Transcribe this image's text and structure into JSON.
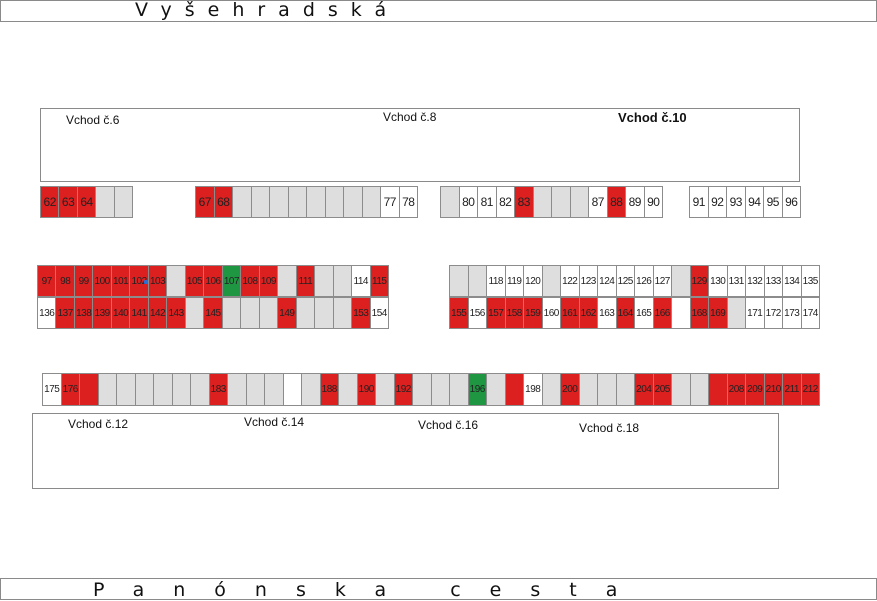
{
  "streets": {
    "top": "Vyšehradská",
    "bottom": "Panónska cesta"
  },
  "entrances_top": [
    "Vchod č.6",
    "Vchod č.8",
    "Vchod č.10"
  ],
  "entrances_bottom": [
    "Vchod č.12",
    "Vchod č.14",
    "Vchod č.16",
    "Vchod č.18"
  ],
  "colors": {
    "occupied": "#dc2020",
    "highlight": "#1f9642",
    "unnumbered": "#dedede",
    "available": "#ffffff"
  },
  "rows": [
    {
      "id": "row-a",
      "segments": [
        {
          "cells": [
            [
              "62",
              "red"
            ],
            [
              "63",
              "red"
            ],
            [
              "64",
              "red"
            ],
            [
              "",
              "grey"
            ],
            [
              "",
              "grey"
            ]
          ]
        },
        {
          "cells": [
            [
              "67",
              "red"
            ],
            [
              "68",
              "red"
            ],
            [
              "",
              "grey"
            ],
            [
              "",
              "grey"
            ],
            [
              "",
              "grey"
            ],
            [
              "",
              "grey"
            ],
            [
              "",
              "grey"
            ],
            [
              "",
              "grey"
            ],
            [
              "",
              "grey"
            ],
            [
              "",
              "grey"
            ],
            [
              "77",
              "white"
            ],
            [
              "78",
              "white"
            ]
          ]
        },
        {
          "cells": [
            [
              "",
              "grey"
            ],
            [
              "80",
              "white"
            ],
            [
              "81",
              "white"
            ],
            [
              "82",
              "white"
            ],
            [
              "83",
              "red"
            ],
            [
              "",
              "grey"
            ],
            [
              "",
              "grey"
            ],
            [
              "",
              "grey"
            ],
            [
              "87",
              "white"
            ],
            [
              "88",
              "red"
            ],
            [
              "89",
              "white"
            ],
            [
              "90",
              "white"
            ]
          ]
        },
        {
          "cells": [
            [
              "91",
              "white"
            ],
            [
              "92",
              "white"
            ],
            [
              "93",
              "white"
            ],
            [
              "94",
              "white"
            ],
            [
              "95",
              "white"
            ],
            [
              "96",
              "white"
            ]
          ]
        }
      ]
    },
    {
      "id": "row-b1",
      "segments": [
        {
          "cells": [
            [
              "97",
              "red"
            ],
            [
              "98",
              "red"
            ],
            [
              "99",
              "red"
            ],
            [
              "100",
              "red"
            ],
            [
              "101",
              "red"
            ],
            [
              "102",
              "red"
            ],
            [
              "103",
              "red"
            ],
            [
              "",
              "grey"
            ],
            [
              "105",
              "red"
            ],
            [
              "106",
              "red"
            ],
            [
              "107",
              "green"
            ],
            [
              "108",
              "red"
            ],
            [
              "109",
              "red"
            ],
            [
              "",
              "grey"
            ],
            [
              "111",
              "red"
            ],
            [
              "",
              "grey"
            ],
            [
              "",
              "grey"
            ],
            [
              "114",
              "white"
            ],
            [
              "115",
              "red"
            ]
          ]
        },
        {
          "cells": [
            [
              "",
              "grey"
            ],
            [
              "",
              "grey"
            ],
            [
              "118",
              "white"
            ],
            [
              "119",
              "white"
            ],
            [
              "120",
              "white"
            ],
            [
              "",
              "grey"
            ],
            [
              "122",
              "white"
            ],
            [
              "123",
              "white"
            ],
            [
              "124",
              "white"
            ],
            [
              "125",
              "white"
            ],
            [
              "126",
              "white"
            ],
            [
              "127",
              "white"
            ],
            [
              "",
              "grey"
            ],
            [
              "129",
              "red"
            ],
            [
              "130",
              "white"
            ],
            [
              "131",
              "white"
            ],
            [
              "132",
              "white"
            ],
            [
              "133",
              "white"
            ],
            [
              "134",
              "white"
            ],
            [
              "135",
              "white"
            ]
          ]
        }
      ]
    },
    {
      "id": "row-b2",
      "segments": [
        {
          "cells": [
            [
              "136",
              "white"
            ],
            [
              "137",
              "red"
            ],
            [
              "138",
              "red"
            ],
            [
              "139",
              "red"
            ],
            [
              "140",
              "red"
            ],
            [
              "141",
              "red"
            ],
            [
              "142",
              "red"
            ],
            [
              "143",
              "red"
            ],
            [
              "",
              "grey"
            ],
            [
              "145",
              "red"
            ],
            [
              "",
              "grey"
            ],
            [
              "",
              "grey"
            ],
            [
              "",
              "grey"
            ],
            [
              "149",
              "red"
            ],
            [
              "",
              "grey"
            ],
            [
              "",
              "grey"
            ],
            [
              "",
              "grey"
            ],
            [
              "153",
              "red"
            ],
            [
              "154",
              "white"
            ]
          ]
        },
        {
          "cells": [
            [
              "155",
              "red"
            ],
            [
              "156",
              "white"
            ],
            [
              "157",
              "red"
            ],
            [
              "158",
              "red"
            ],
            [
              "159",
              "red"
            ],
            [
              "160",
              "white"
            ],
            [
              "161",
              "red"
            ],
            [
              "162",
              "red"
            ],
            [
              "163",
              "white"
            ],
            [
              "164",
              "red"
            ],
            [
              "165",
              "white"
            ],
            [
              "166",
              "red"
            ],
            [
              "",
              "white"
            ],
            [
              "168",
              "red"
            ],
            [
              "169",
              "red"
            ],
            [
              "",
              "grey"
            ],
            [
              "171",
              "white"
            ],
            [
              "172",
              "white"
            ],
            [
              "173",
              "white"
            ],
            [
              "174",
              "white"
            ]
          ]
        }
      ]
    },
    {
      "id": "row-c",
      "segments": [
        {
          "cells": [
            [
              "175",
              "white"
            ],
            [
              "176",
              "red"
            ],
            [
              "",
              "red"
            ],
            [
              "",
              "grey"
            ],
            [
              "",
              "grey"
            ],
            [
              "",
              "grey"
            ],
            [
              "",
              "grey"
            ],
            [
              "",
              "grey"
            ],
            [
              "",
              "grey"
            ],
            [
              "183",
              "red"
            ],
            [
              "",
              "grey"
            ],
            [
              "",
              "grey"
            ],
            [
              "",
              "grey"
            ],
            [
              "",
              "white"
            ],
            [
              "",
              "grey"
            ],
            [
              "188",
              "red"
            ],
            [
              "",
              "grey"
            ],
            [
              "190",
              "red"
            ],
            [
              "",
              "grey"
            ],
            [
              "192",
              "red"
            ],
            [
              "",
              "grey"
            ],
            [
              "",
              "grey"
            ],
            [
              "",
              "grey"
            ],
            [
              "196",
              "green"
            ],
            [
              "",
              "grey"
            ],
            [
              "",
              "red"
            ],
            [
              "198",
              "white"
            ],
            [
              "",
              "grey"
            ],
            [
              "200",
              "red"
            ],
            [
              "",
              "grey"
            ],
            [
              "",
              "grey"
            ],
            [
              "",
              "grey"
            ],
            [
              "204",
              "red"
            ],
            [
              "205",
              "red"
            ],
            [
              "",
              "grey"
            ],
            [
              "",
              "grey"
            ],
            [
              "",
              "red"
            ],
            [
              "208",
              "red"
            ],
            [
              "209",
              "red"
            ],
            [
              "210",
              "red"
            ],
            [
              "211",
              "red"
            ],
            [
              "212",
              "red"
            ]
          ]
        }
      ]
    }
  ]
}
